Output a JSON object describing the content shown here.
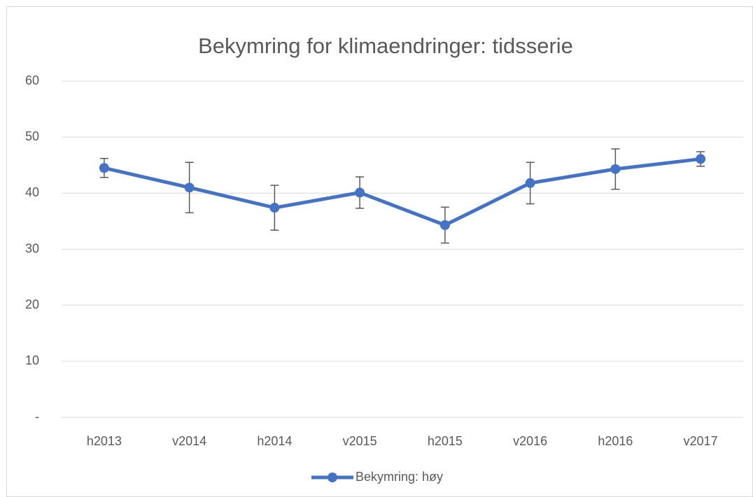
{
  "chart_data": {
    "type": "line",
    "title": "Bekymring for klimaendringer: tidsserie",
    "categories": [
      "h2013",
      "v2014",
      "h2014",
      "v2015",
      "h2015",
      "v2016",
      "h2016",
      "v2017"
    ],
    "series": [
      {
        "name": "Bekymring: høy",
        "color": "#4472c4",
        "values": [
          44.5,
          41.0,
          37.4,
          40.1,
          34.3,
          41.8,
          44.3,
          46.1
        ],
        "errors": [
          1.7,
          4.5,
          4.0,
          2.8,
          3.2,
          3.7,
          3.6,
          1.3
        ]
      }
    ],
    "ylim": [
      0,
      60
    ],
    "yticks": [
      {
        "value": 0,
        "label": "-"
      },
      10,
      20,
      30,
      40,
      50,
      60
    ],
    "grid": true,
    "legend": "bottom"
  }
}
